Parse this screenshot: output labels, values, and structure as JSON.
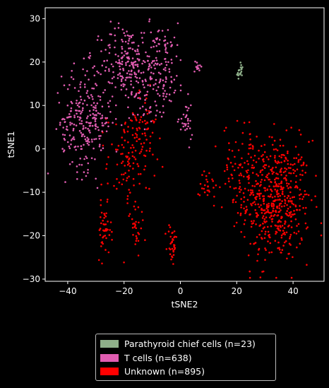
{
  "chart_data": {
    "type": "scatter",
    "title": "",
    "xlabel": "tSNE2",
    "ylabel": "tSNE1",
    "xlim": [
      -48,
      51
    ],
    "ylim": [
      -30.5,
      32.5
    ],
    "xticks": [
      -40,
      -20,
      0,
      20,
      40
    ],
    "yticks": [
      -30,
      -20,
      -10,
      0,
      10,
      20,
      30
    ],
    "grid": false,
    "legend_position": "bottom-center",
    "series": [
      {
        "name": "Parathyroid chief cells (n=23)",
        "color": "#8fb08a",
        "count": 23,
        "clusters": [
          {
            "cx": 21,
            "cy": 17.5,
            "sx": 0.6,
            "sy": 1.0,
            "n": 23
          }
        ]
      },
      {
        "name": "T cells (n=638)",
        "color": "#e05cb0",
        "count": 638,
        "clusters": [
          {
            "cx": -20,
            "cy": 20,
            "sx": 4,
            "sy": 4.5,
            "n": 150
          },
          {
            "cx": -8,
            "cy": 19,
            "sx": 5,
            "sy": 5,
            "n": 170
          },
          {
            "cx": -33,
            "cy": 7,
            "sx": 4.5,
            "sy": 6,
            "n": 230
          },
          {
            "cx": -40,
            "cy": 5,
            "sx": 2,
            "sy": 3,
            "n": 25
          },
          {
            "cx": 2,
            "cy": 6,
            "sx": 1.2,
            "sy": 2.5,
            "n": 30
          },
          {
            "cx": -12,
            "cy": 11,
            "sx": 3,
            "sy": 3,
            "n": 20
          },
          {
            "cx": 6,
            "cy": 19,
            "sx": 0.5,
            "sy": 0.8,
            "n": 13
          }
        ]
      },
      {
        "name": "Unknown (n=895)",
        "color": "#ff0000",
        "count": 895,
        "clusters": [
          {
            "cx": 34,
            "cy": -12,
            "sx": 6,
            "sy": 7,
            "n": 520
          },
          {
            "cx": 22,
            "cy": -4,
            "sx": 3.5,
            "sy": 5,
            "n": 90
          },
          {
            "cx": -18,
            "cy": -3,
            "sx": 4,
            "sy": 6,
            "n": 110
          },
          {
            "cx": -13,
            "cy": 6,
            "sx": 3,
            "sy": 4,
            "n": 45
          },
          {
            "cx": -27,
            "cy": -19,
            "sx": 1.2,
            "sy": 3,
            "n": 45
          },
          {
            "cx": -3,
            "cy": -22,
            "sx": 0.9,
            "sy": 2.5,
            "n": 35
          },
          {
            "cx": -16,
            "cy": -18,
            "sx": 1.2,
            "sy": 2.5,
            "n": 25
          },
          {
            "cx": 10,
            "cy": -8,
            "sx": 1.5,
            "sy": 2.5,
            "n": 25
          }
        ]
      }
    ]
  }
}
